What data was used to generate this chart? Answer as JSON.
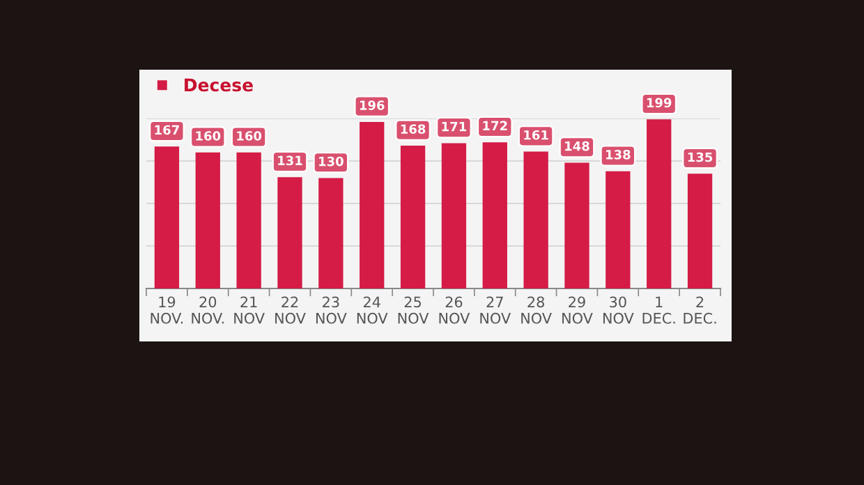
{
  "chart_data": {
    "type": "bar",
    "categories": [
      "19\nNOV.",
      "20\nNOV.",
      "21\nNOV",
      "22\nNOV",
      "23\nNOV",
      "24\nNOV",
      "25\nNOV",
      "26\nNOV",
      "27\nNOV",
      "28\nNOV",
      "29\nNOV",
      "30\nNOV",
      "1\nDEC.",
      "2\nDEC."
    ],
    "series": [
      {
        "name": "Decese",
        "color": "#d41c46",
        "values": [
          167,
          160,
          160,
          131,
          130,
          196,
          168,
          171,
          172,
          161,
          148,
          138,
          199,
          135
        ]
      }
    ],
    "ylim": [
      0,
      200
    ],
    "yticks": [
      {
        "value": 0,
        "label": null
      },
      {
        "value": 50,
        "label": null
      },
      {
        "value": 100,
        "label": null
      },
      {
        "value": 150,
        "label": null
      },
      {
        "value": 200,
        "label": null
      }
    ],
    "tick_labels": "x",
    "grid": "y",
    "legend": "top left",
    "data_labels": true
  }
}
